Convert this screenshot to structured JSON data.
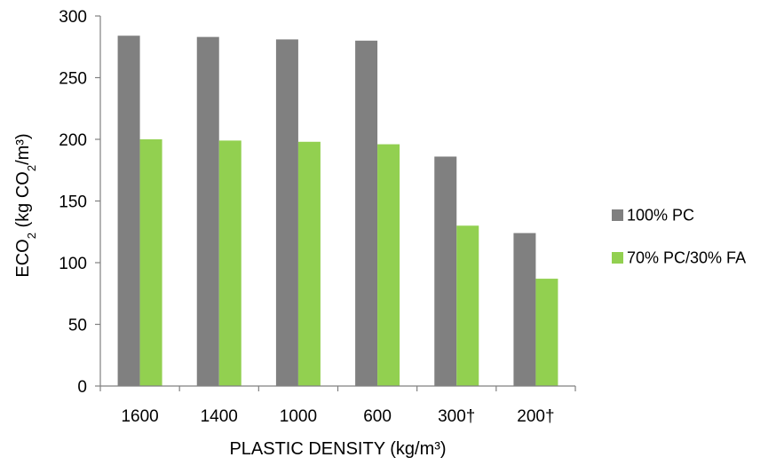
{
  "chart_data": {
    "type": "bar",
    "title": "",
    "xlabel": "PLASTIC DENSITY (kg/m³)",
    "ylabel": {
      "parts": [
        {
          "text": "ECO",
          "sub": false
        },
        {
          "text": "2",
          "sub": true
        },
        {
          "text": " (kg CO",
          "sub": false
        },
        {
          "text": "2",
          "sub": true
        },
        {
          "text": "/m³)",
          "sub": false
        }
      ]
    },
    "categories": [
      "1600",
      "1400",
      "1000",
      "600",
      "300†",
      "200†"
    ],
    "series": [
      {
        "name": "100% PC",
        "color": "#808080",
        "values": [
          284,
          283,
          281,
          280,
          186,
          124
        ]
      },
      {
        "name": "70% PC/30% FA",
        "color": "#92D050",
        "values": [
          200,
          199,
          198,
          196,
          130,
          87
        ]
      }
    ],
    "ylim": [
      0,
      300
    ],
    "yticks": [
      0,
      50,
      100,
      150,
      200,
      250,
      300
    ],
    "grid": false,
    "legend_position": "right"
  }
}
